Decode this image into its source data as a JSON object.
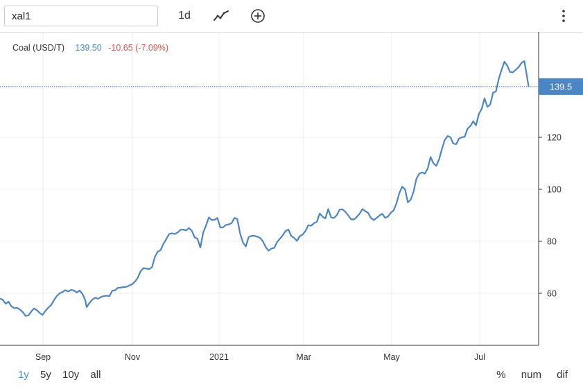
{
  "toolbar": {
    "search_value": "xal1",
    "interval_label": "1d",
    "line_icon": "line-chart-icon",
    "add_icon": "plus-circle-icon",
    "menu_icon": "vertical-dots-icon"
  },
  "legend": {
    "name": "Coal (USD/T)",
    "last": "139.50",
    "change": "-10.65 (-7.09%)"
  },
  "ranges": [
    {
      "label": "1y",
      "active": true
    },
    {
      "label": "5y",
      "active": false
    },
    {
      "label": "10y",
      "active": false
    },
    {
      "label": "all",
      "active": false
    }
  ],
  "modes": [
    "%",
    "num",
    "dif"
  ],
  "colors": {
    "line": "#4a86c5",
    "last_box": "#4a86c5",
    "change": "#d9534f",
    "active_range": "#3a8fd9"
  },
  "chart_data": {
    "type": "line",
    "series": [
      {
        "name": "Coal (USD/T)",
        "points": [
          [
            0,
            58
          ],
          [
            2,
            57.5
          ],
          [
            4,
            56
          ],
          [
            6,
            56.8
          ],
          [
            8,
            55
          ],
          [
            10,
            54.3
          ],
          [
            12,
            54.4
          ],
          [
            14,
            53.8
          ],
          [
            16,
            52.8
          ],
          [
            18,
            51.3
          ],
          [
            20,
            51.5
          ],
          [
            22,
            53
          ],
          [
            24,
            54.2
          ],
          [
            26,
            53.5
          ],
          [
            28,
            52.4
          ],
          [
            30,
            51.7
          ],
          [
            32,
            53.3
          ],
          [
            34,
            54.5
          ],
          [
            36,
            55.5
          ],
          [
            38,
            57.4
          ],
          [
            40,
            59
          ],
          [
            42,
            60
          ],
          [
            44,
            60.5
          ],
          [
            46,
            61.2
          ],
          [
            48,
            60.7
          ],
          [
            50,
            61.3
          ],
          [
            52,
            61.1
          ],
          [
            54,
            60.3
          ],
          [
            56,
            61.1
          ],
          [
            58,
            59.8
          ],
          [
            60,
            57.4
          ],
          [
            61,
            54.7
          ],
          [
            63,
            56.3
          ],
          [
            65,
            57.6
          ],
          [
            67,
            58.3
          ],
          [
            69,
            57.9
          ],
          [
            71,
            58.6
          ],
          [
            73,
            58.9
          ],
          [
            75,
            59.1
          ],
          [
            77,
            58.9
          ],
          [
            79,
            61
          ],
          [
            81,
            61.2
          ],
          [
            83,
            62.1
          ],
          [
            85,
            62.2
          ],
          [
            87,
            62.4
          ],
          [
            89,
            62.5
          ],
          [
            91,
            63
          ],
          [
            93,
            63.5
          ],
          [
            95,
            64.5
          ],
          [
            97,
            66
          ],
          [
            99,
            68.5
          ],
          [
            101,
            69.7
          ],
          [
            103,
            69.5
          ],
          [
            105,
            69.3
          ],
          [
            107,
            70
          ],
          [
            109,
            74
          ],
          [
            111,
            76
          ],
          [
            113,
            76.6
          ],
          [
            115,
            79
          ],
          [
            117,
            80.8
          ],
          [
            119,
            82.8
          ],
          [
            121,
            83.1
          ],
          [
            123,
            82.8
          ],
          [
            125,
            83.4
          ],
          [
            127,
            84.4
          ],
          [
            129,
            84.5
          ],
          [
            131,
            84.2
          ],
          [
            133,
            85.1
          ],
          [
            135,
            84
          ],
          [
            137,
            81.5
          ],
          [
            139,
            81
          ],
          [
            141,
            77.6
          ],
          [
            143,
            83.3
          ],
          [
            145,
            86.2
          ],
          [
            147,
            89.2
          ],
          [
            149,
            88.2
          ],
          [
            151,
            88.3
          ],
          [
            153,
            89
          ],
          [
            155,
            85.3
          ],
          [
            157,
            85.4
          ],
          [
            159,
            86.3
          ],
          [
            161,
            86.5
          ],
          [
            163,
            87
          ],
          [
            165,
            89
          ],
          [
            167,
            88.6
          ],
          [
            169,
            83
          ],
          [
            171,
            79.5
          ],
          [
            173,
            78
          ],
          [
            175,
            81.6
          ],
          [
            177,
            82.1
          ],
          [
            179,
            82.1
          ],
          [
            181,
            81.8
          ],
          [
            183,
            81.3
          ],
          [
            185,
            80
          ],
          [
            187,
            77.8
          ],
          [
            189,
            76.4
          ],
          [
            191,
            77.2
          ],
          [
            193,
            77.5
          ],
          [
            195,
            79.7
          ],
          [
            197,
            81
          ],
          [
            199,
            82.3
          ],
          [
            201,
            84
          ],
          [
            203,
            84.5
          ],
          [
            205,
            82
          ],
          [
            207,
            81.3
          ],
          [
            209,
            80.2
          ],
          [
            211,
            82
          ],
          [
            213,
            82.6
          ],
          [
            215,
            84
          ],
          [
            217,
            86.2
          ],
          [
            219,
            86
          ],
          [
            221,
            87
          ],
          [
            223,
            87.5
          ],
          [
            225,
            90.7
          ],
          [
            227,
            89.5
          ],
          [
            229,
            88.8
          ],
          [
            231,
            92.4
          ],
          [
            233,
            89.2
          ],
          [
            235,
            89
          ],
          [
            237,
            90
          ],
          [
            239,
            92.2
          ],
          [
            241,
            92.3
          ],
          [
            243,
            91.4
          ],
          [
            245,
            90
          ],
          [
            247,
            88.5
          ],
          [
            249,
            88.4
          ],
          [
            251,
            89.3
          ],
          [
            253,
            90.6
          ],
          [
            255,
            92.4
          ],
          [
            257,
            91.6
          ],
          [
            259,
            91
          ],
          [
            261,
            89
          ],
          [
            263,
            88.2
          ],
          [
            265,
            89
          ],
          [
            267,
            89.9
          ],
          [
            269,
            90.6
          ],
          [
            271,
            89
          ],
          [
            273,
            89.5
          ],
          [
            275,
            91
          ],
          [
            277,
            91.9
          ],
          [
            279,
            94.6
          ],
          [
            281,
            98.5
          ],
          [
            283,
            101
          ],
          [
            285,
            100
          ],
          [
            287,
            95
          ],
          [
            289,
            96
          ],
          [
            291,
            99
          ],
          [
            293,
            104
          ],
          [
            295,
            106
          ],
          [
            297,
            106.5
          ],
          [
            299,
            106
          ],
          [
            301,
            108
          ],
          [
            303,
            112.4
          ],
          [
            305,
            110
          ],
          [
            307,
            109
          ],
          [
            309,
            111.5
          ],
          [
            311,
            115.5
          ],
          [
            313,
            119
          ],
          [
            315,
            120.5
          ],
          [
            317,
            120
          ],
          [
            319,
            117.6
          ],
          [
            321,
            117.3
          ],
          [
            323,
            119.5
          ],
          [
            325,
            120
          ],
          [
            327,
            120.2
          ],
          [
            329,
            123.3
          ],
          [
            331,
            124.3
          ],
          [
            333,
            126.2
          ],
          [
            335,
            124.6
          ],
          [
            337,
            129
          ],
          [
            339,
            131
          ],
          [
            341,
            135
          ],
          [
            343,
            131.7
          ],
          [
            345,
            132.6
          ],
          [
            347,
            137.2
          ],
          [
            349,
            137.6
          ],
          [
            351,
            142.5
          ],
          [
            353,
            146
          ],
          [
            355,
            149.1
          ],
          [
            357,
            147.5
          ],
          [
            359,
            145.1
          ],
          [
            361,
            145
          ],
          [
            363,
            146
          ],
          [
            365,
            147
          ],
          [
            367,
            148.6
          ],
          [
            369,
            149.3
          ],
          [
            370,
            146
          ],
          [
            372,
            139.5
          ]
        ]
      }
    ],
    "x_ticks": [
      "Sep",
      "Nov",
      "2021",
      "Mar",
      "May",
      "Jul"
    ],
    "y_ticks": [
      60,
      80,
      100,
      120
    ],
    "y_range": [
      40,
      152
    ],
    "last_value_label": "139.5",
    "grid": true
  }
}
